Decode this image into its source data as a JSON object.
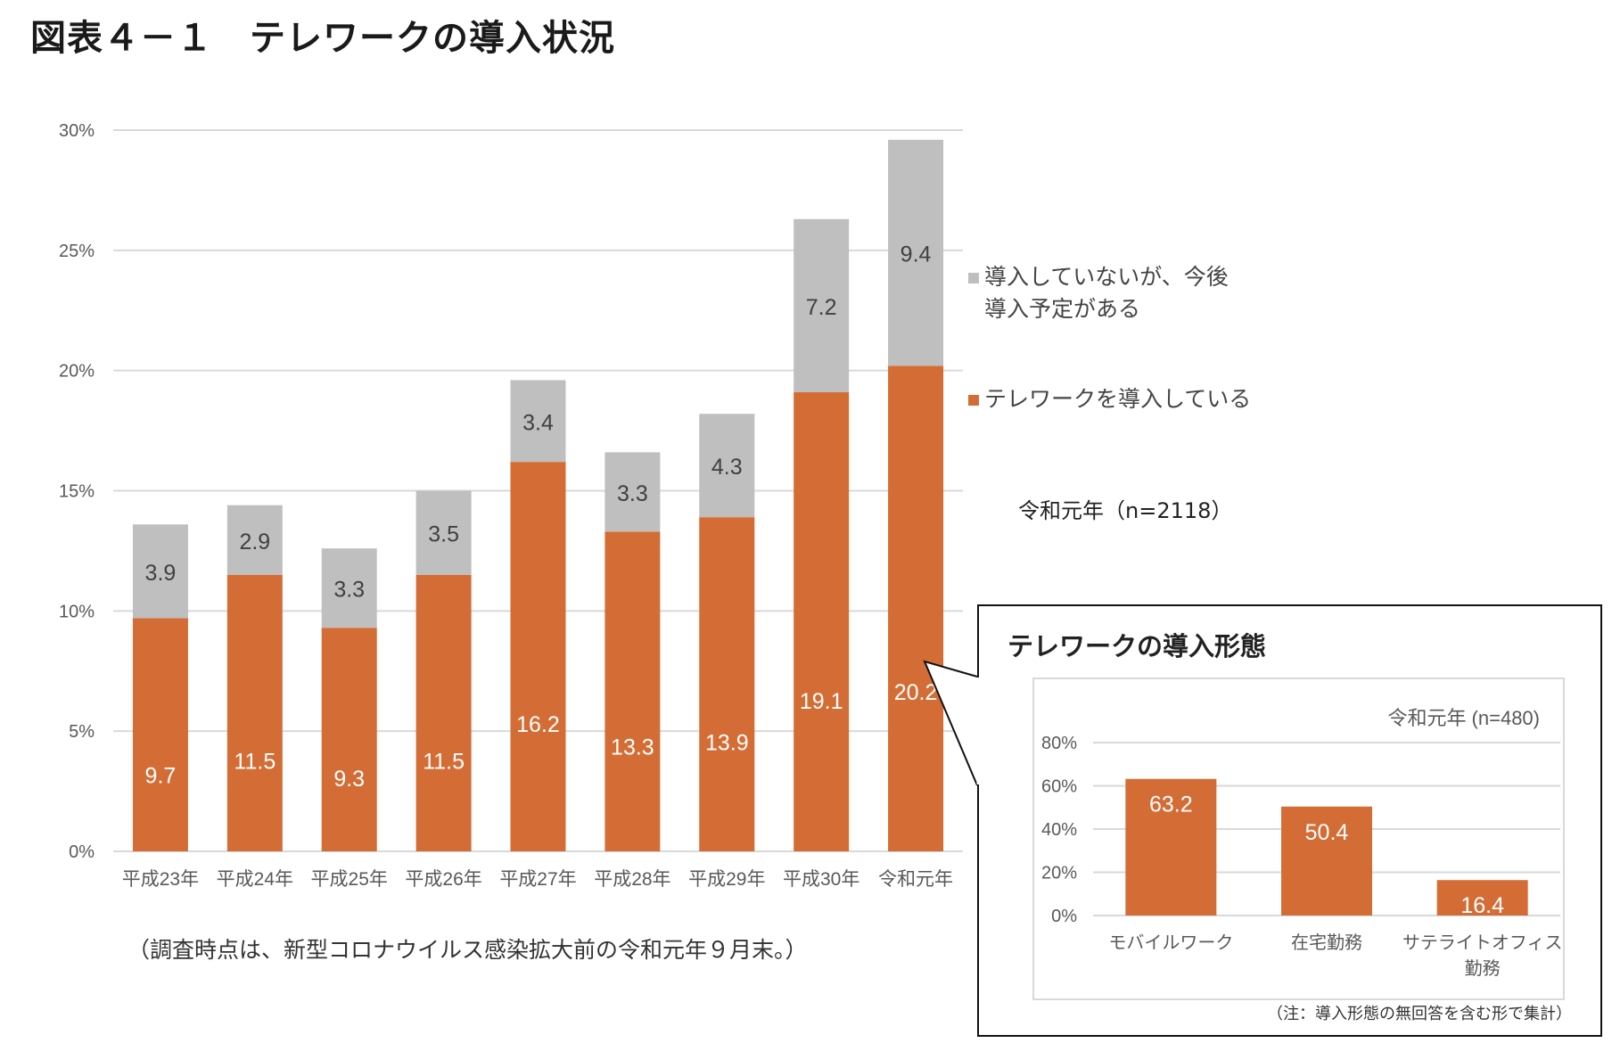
{
  "title": "図表４－１　テレワークの導入状況",
  "footnote": "（調査時点は、新型コロナウイルス感染拡大前の令和元年９月末。）",
  "chart_data": [
    {
      "type": "bar",
      "stacked": true,
      "categories": [
        "平成23年",
        "平成24年",
        "平成25年",
        "平成26年",
        "平成27年",
        "平成28年",
        "平成29年",
        "平成30年",
        "令和元年"
      ],
      "series": [
        {
          "name": "テレワークを導入している",
          "color": "#d46d35",
          "values": [
            9.7,
            11.5,
            9.3,
            11.5,
            16.2,
            13.3,
            13.9,
            19.1,
            20.2
          ]
        },
        {
          "name": "導入していないが、今後導入予定がある",
          "color": "#bfbfbf",
          "values": [
            3.9,
            2.9,
            3.3,
            3.5,
            3.4,
            3.3,
            4.3,
            7.2,
            9.4
          ]
        }
      ],
      "legend_lines": [
        "導入していないが、今後",
        "導入予定がある"
      ],
      "yticks": [
        "0%",
        "5%",
        "10%",
        "15%",
        "20%",
        "25%",
        "30%"
      ],
      "ylim": [
        0,
        30
      ],
      "grid": true,
      "legend": "right",
      "annotation": "令和元年（n=2118）"
    },
    {
      "type": "bar",
      "title": "テレワークの導入形態",
      "categories": [
        "モバイルワーク",
        "在宅勤務",
        "サテライトオフィス勤務"
      ],
      "category_lines": [
        [
          "モバイルワーク"
        ],
        [
          "在宅勤務"
        ],
        [
          "サテライトオフィス",
          "勤務"
        ]
      ],
      "values": [
        63.2,
        50.4,
        16.4
      ],
      "color": "#d46d35",
      "yticks": [
        "0%",
        "20%",
        "40%",
        "60%",
        "80%"
      ],
      "ylim": [
        0,
        80
      ],
      "grid": true,
      "annotation": "令和元年 (n=480)",
      "note": "（注：導入形態の無回答を含む形で集計）"
    }
  ]
}
